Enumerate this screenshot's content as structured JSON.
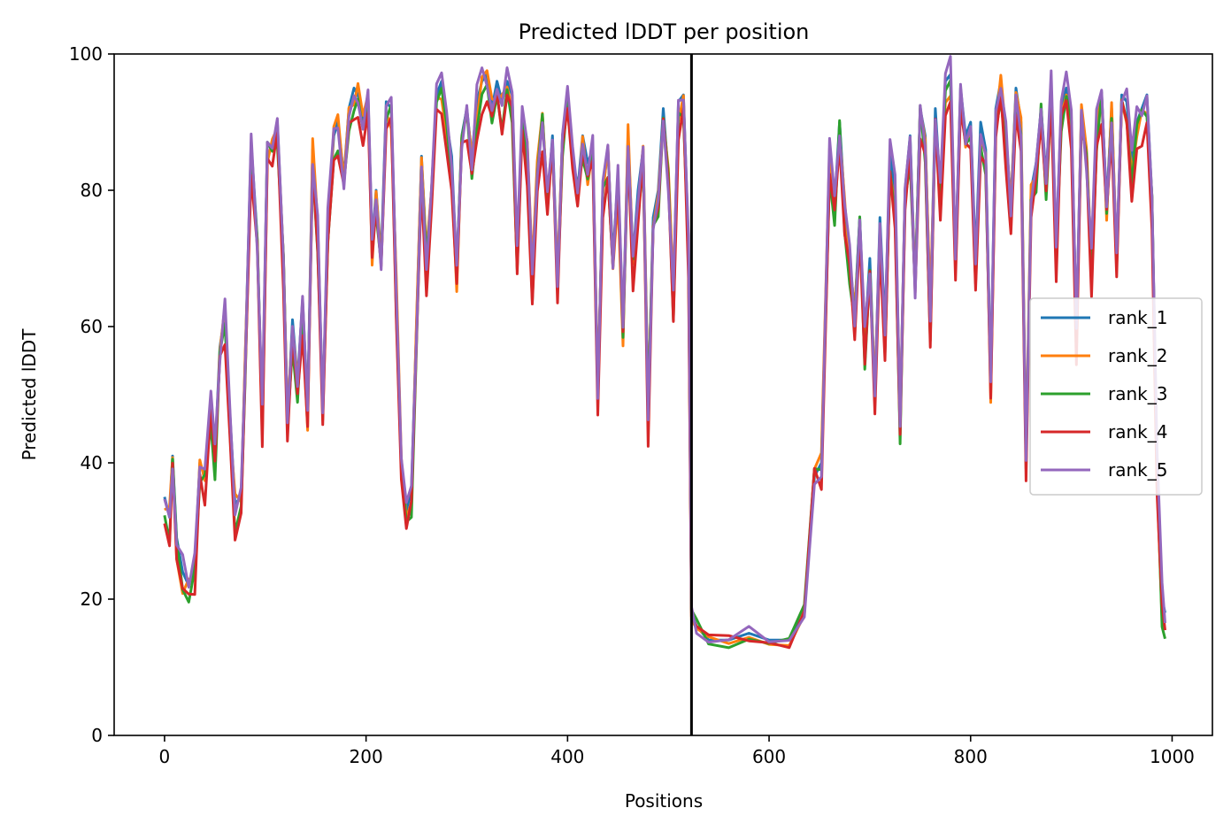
{
  "chart_data": {
    "type": "line",
    "title": "Predicted lDDT per position",
    "xlabel": "Positions",
    "ylabel": "Predicted lDDT",
    "xlim": [
      -50,
      1040
    ],
    "ylim": [
      0,
      100
    ],
    "xticks": [
      0,
      200,
      400,
      600,
      800,
      1000
    ],
    "yticks": [
      0,
      20,
      40,
      60,
      80,
      100
    ],
    "grid": false,
    "legend_position": "center-right",
    "vline_x": 523,
    "series": [
      {
        "name": "rank_1",
        "color": "#1f77b4",
        "offset": 0.8,
        "points": [
          [
            0,
            35
          ],
          [
            5,
            32
          ],
          [
            8,
            41
          ],
          [
            12,
            29
          ],
          [
            18,
            24
          ],
          [
            24,
            22
          ],
          [
            30,
            25
          ],
          [
            35,
            40
          ],
          [
            40,
            38
          ],
          [
            46,
            49
          ],
          [
            50,
            41
          ],
          [
            55,
            57
          ],
          [
            60,
            62
          ],
          [
            65,
            47
          ],
          [
            70,
            34
          ],
          [
            76,
            35
          ],
          [
            80,
            55
          ],
          [
            86,
            87
          ],
          [
            92,
            73
          ],
          [
            97,
            46
          ],
          [
            102,
            87
          ],
          [
            107,
            86
          ],
          [
            112,
            90
          ],
          [
            118,
            70
          ],
          [
            122,
            46
          ],
          [
            127,
            61
          ],
          [
            132,
            52
          ],
          [
            137,
            64
          ],
          [
            142,
            48
          ],
          [
            147,
            86
          ],
          [
            152,
            75
          ],
          [
            157,
            48
          ],
          [
            162,
            75
          ],
          [
            168,
            88
          ],
          [
            172,
            90
          ],
          [
            178,
            82
          ],
          [
            183,
            92
          ],
          [
            188,
            95
          ],
          [
            192,
            94
          ],
          [
            197,
            90
          ],
          [
            202,
            94
          ],
          [
            206,
            72
          ],
          [
            210,
            80
          ],
          [
            215,
            70
          ],
          [
            220,
            93
          ],
          [
            225,
            92
          ],
          [
            230,
            66
          ],
          [
            235,
            39
          ],
          [
            240,
            33
          ],
          [
            245,
            36
          ],
          [
            250,
            60
          ],
          [
            255,
            85
          ],
          [
            260,
            70
          ],
          [
            265,
            80
          ],
          [
            270,
            94
          ],
          [
            275,
            96
          ],
          [
            280,
            90
          ],
          [
            285,
            85
          ],
          [
            290,
            68
          ],
          [
            295,
            88
          ],
          [
            300,
            92
          ],
          [
            305,
            85
          ],
          [
            310,
            93
          ],
          [
            315,
            96
          ],
          [
            320,
            97
          ],
          [
            325,
            92
          ],
          [
            330,
            96
          ],
          [
            335,
            93
          ],
          [
            340,
            96
          ],
          [
            345,
            94
          ],
          [
            350,
            70
          ],
          [
            355,
            91
          ],
          [
            360,
            86
          ],
          [
            365,
            68
          ],
          [
            370,
            84
          ],
          [
            375,
            91
          ],
          [
            380,
            78
          ],
          [
            385,
            88
          ],
          [
            390,
            67
          ],
          [
            395,
            88
          ],
          [
            400,
            94
          ],
          [
            405,
            85
          ],
          [
            410,
            80
          ],
          [
            415,
            88
          ],
          [
            420,
            84
          ],
          [
            425,
            86
          ],
          [
            430,
            50
          ],
          [
            435,
            80
          ],
          [
            440,
            86
          ],
          [
            445,
            70
          ],
          [
            450,
            82
          ],
          [
            455,
            60
          ],
          [
            460,
            88
          ],
          [
            465,
            70
          ],
          [
            470,
            80
          ],
          [
            475,
            86
          ],
          [
            480,
            48
          ],
          [
            485,
            76
          ],
          [
            490,
            80
          ],
          [
            495,
            92
          ],
          [
            500,
            82
          ],
          [
            505,
            65
          ],
          [
            510,
            93
          ],
          [
            515,
            94
          ],
          [
            520,
            72
          ],
          [
            523,
            18
          ],
          [
            528,
            16
          ],
          [
            540,
            14
          ],
          [
            560,
            14
          ],
          [
            580,
            15
          ],
          [
            600,
            14
          ],
          [
            620,
            14
          ],
          [
            635,
            18
          ],
          [
            645,
            38
          ],
          [
            652,
            40
          ],
          [
            660,
            85
          ],
          [
            665,
            78
          ],
          [
            670,
            90
          ],
          [
            675,
            78
          ],
          [
            680,
            70
          ],
          [
            685,
            62
          ],
          [
            690,
            76
          ],
          [
            695,
            58
          ],
          [
            700,
            70
          ],
          [
            705,
            50
          ],
          [
            710,
            76
          ],
          [
            715,
            60
          ],
          [
            720,
            85
          ],
          [
            725,
            80
          ],
          [
            730,
            46
          ],
          [
            735,
            80
          ],
          [
            740,
            88
          ],
          [
            745,
            66
          ],
          [
            750,
            92
          ],
          [
            755,
            88
          ],
          [
            760,
            62
          ],
          [
            765,
            92
          ],
          [
            770,
            80
          ],
          [
            775,
            96
          ],
          [
            780,
            97
          ],
          [
            785,
            70
          ],
          [
            790,
            95
          ],
          [
            795,
            88
          ],
          [
            800,
            90
          ],
          [
            805,
            70
          ],
          [
            810,
            90
          ],
          [
            815,
            86
          ],
          [
            820,
            52
          ],
          [
            825,
            92
          ],
          [
            830,
            96
          ],
          [
            835,
            88
          ],
          [
            840,
            78
          ],
          [
            845,
            95
          ],
          [
            850,
            90
          ],
          [
            855,
            40
          ],
          [
            860,
            80
          ],
          [
            865,
            84
          ],
          [
            870,
            92
          ],
          [
            875,
            82
          ],
          [
            880,
            95
          ],
          [
            885,
            72
          ],
          [
            890,
            92
          ],
          [
            895,
            95
          ],
          [
            900,
            90
          ],
          [
            905,
            60
          ],
          [
            910,
            92
          ],
          [
            915,
            85
          ],
          [
            920,
            70
          ],
          [
            925,
            90
          ],
          [
            930,
            94
          ],
          [
            935,
            78
          ],
          [
            940,
            92
          ],
          [
            945,
            70
          ],
          [
            950,
            94
          ],
          [
            955,
            93
          ],
          [
            960,
            84
          ],
          [
            965,
            90
          ],
          [
            970,
            92
          ],
          [
            975,
            94
          ],
          [
            980,
            79
          ],
          [
            985,
            40
          ],
          [
            990,
            20
          ],
          [
            993,
            18
          ]
        ]
      },
      {
        "name": "rank_2",
        "color": "#ff7f0e",
        "offset": -0.8,
        "points": null
      },
      {
        "name": "rank_3",
        "color": "#2ca02c",
        "offset": -1.8,
        "points": null
      },
      {
        "name": "rank_4",
        "color": "#d62728",
        "offset": -3.2,
        "points": null
      },
      {
        "name": "rank_5",
        "color": "#9467bd",
        "offset": 0.2,
        "points": null
      }
    ]
  }
}
